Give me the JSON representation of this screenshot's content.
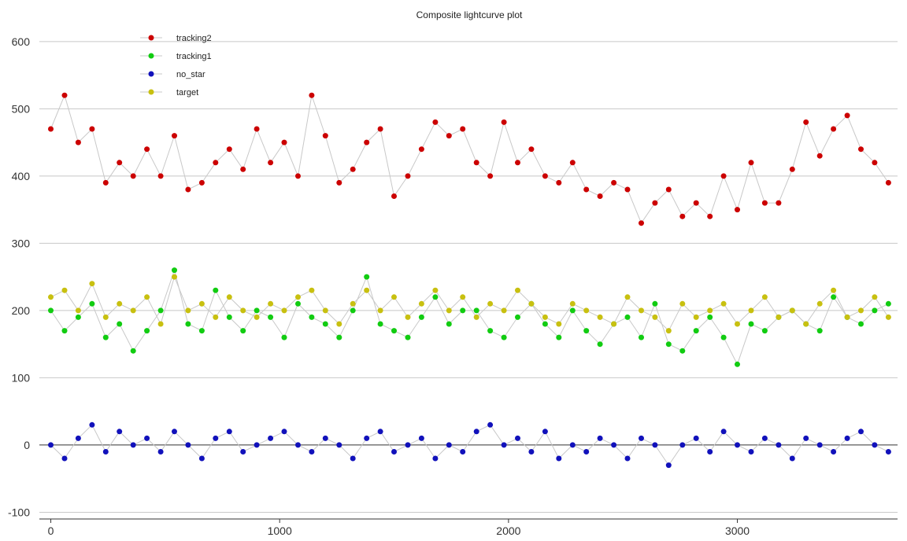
{
  "chart_data": {
    "type": "scatter",
    "title": "Composite lightcurve plot",
    "xlabel": "",
    "ylabel": "",
    "xlim": [
      -50,
      3700
    ],
    "ylim": [
      -110,
      615
    ],
    "xticks": [
      0,
      1000,
      2000,
      3000
    ],
    "yticks": [
      -100,
      0,
      100,
      200,
      300,
      400,
      500,
      600
    ],
    "grid": "horizontal",
    "legend_position": "top-left",
    "connect_points": true,
    "line_color": "#c8c8c8",
    "series": [
      {
        "name": "tracking2",
        "color": "#cc0000",
        "x": [
          0,
          60,
          120,
          180,
          240,
          300,
          360,
          420,
          480,
          540,
          600,
          660,
          720,
          780,
          840,
          900,
          960,
          1020,
          1080,
          1140,
          1200,
          1260,
          1320,
          1380,
          1440,
          1500,
          1560,
          1620,
          1680,
          1740,
          1800,
          1860,
          1920,
          1980,
          2040,
          2100,
          2160,
          2220,
          2280,
          2340,
          2400,
          2460,
          2520,
          2580,
          2640,
          2700,
          2760,
          2820,
          2880,
          2940,
          3000,
          3060,
          3120,
          3180,
          3240,
          3300,
          3360,
          3420,
          3480,
          3540,
          3600,
          3660
        ],
        "y": [
          470,
          520,
          450,
          470,
          390,
          420,
          400,
          440,
          400,
          460,
          380,
          390,
          420,
          440,
          410,
          470,
          420,
          450,
          400,
          520,
          460,
          390,
          410,
          450,
          470,
          370,
          400,
          440,
          480,
          460,
          470,
          420,
          400,
          480,
          420,
          440,
          400,
          390,
          420,
          380,
          370,
          390,
          380,
          330,
          360,
          380,
          340,
          360,
          340,
          400,
          350,
          420,
          360,
          360,
          410,
          480,
          430,
          470,
          490,
          440,
          420,
          390
        ]
      },
      {
        "name": "tracking1",
        "color": "#11cc11",
        "x": [
          0,
          60,
          120,
          180,
          240,
          300,
          360,
          420,
          480,
          540,
          600,
          660,
          720,
          780,
          840,
          900,
          960,
          1020,
          1080,
          1140,
          1200,
          1260,
          1320,
          1380,
          1440,
          1500,
          1560,
          1620,
          1680,
          1740,
          1800,
          1860,
          1920,
          1980,
          2040,
          2100,
          2160,
          2220,
          2280,
          2340,
          2400,
          2460,
          2520,
          2580,
          2640,
          2700,
          2760,
          2820,
          2880,
          2940,
          3000,
          3060,
          3120,
          3180,
          3240,
          3300,
          3360,
          3420,
          3480,
          3540,
          3600,
          3660
        ],
        "y": [
          200,
          170,
          190,
          210,
          160,
          180,
          140,
          170,
          200,
          260,
          180,
          170,
          230,
          190,
          170,
          200,
          190,
          160,
          210,
          190,
          180,
          160,
          200,
          250,
          180,
          170,
          160,
          190,
          220,
          180,
          200,
          200,
          170,
          160,
          190,
          210,
          180,
          160,
          200,
          170,
          150,
          180,
          190,
          160,
          210,
          150,
          140,
          170,
          190,
          160,
          120,
          180,
          170,
          190,
          200,
          180,
          170,
          220,
          190,
          180,
          200,
          210
        ]
      },
      {
        "name": "no_star",
        "color": "#1111bb",
        "x": [
          0,
          60,
          120,
          180,
          240,
          300,
          360,
          420,
          480,
          540,
          600,
          660,
          720,
          780,
          840,
          900,
          960,
          1020,
          1080,
          1140,
          1200,
          1260,
          1320,
          1380,
          1440,
          1500,
          1560,
          1620,
          1680,
          1740,
          1800,
          1860,
          1920,
          1980,
          2040,
          2100,
          2160,
          2220,
          2280,
          2340,
          2400,
          2460,
          2520,
          2580,
          2640,
          2700,
          2760,
          2820,
          2880,
          2940,
          3000,
          3060,
          3120,
          3180,
          3240,
          3300,
          3360,
          3420,
          3480,
          3540,
          3600,
          3660
        ],
        "y": [
          0,
          -20,
          10,
          30,
          -10,
          20,
          0,
          10,
          -10,
          20,
          0,
          -20,
          10,
          20,
          -10,
          0,
          10,
          20,
          0,
          -10,
          10,
          0,
          -20,
          10,
          20,
          -10,
          0,
          10,
          -20,
          0,
          -10,
          20,
          30,
          0,
          10,
          -10,
          20,
          -20,
          0,
          -10,
          10,
          0,
          -20,
          10,
          0,
          -30,
          0,
          10,
          -10,
          20,
          0,
          -10,
          10,
          0,
          -20,
          10,
          0,
          -10,
          10,
          20,
          0,
          -10
        ]
      },
      {
        "name": "target",
        "color": "#c8c010",
        "x": [
          0,
          60,
          120,
          180,
          240,
          300,
          360,
          420,
          480,
          540,
          600,
          660,
          720,
          780,
          840,
          900,
          960,
          1020,
          1080,
          1140,
          1200,
          1260,
          1320,
          1380,
          1440,
          1500,
          1560,
          1620,
          1680,
          1740,
          1800,
          1860,
          1920,
          1980,
          2040,
          2100,
          2160,
          2220,
          2280,
          2340,
          2400,
          2460,
          2520,
          2580,
          2640,
          2700,
          2760,
          2820,
          2880,
          2940,
          3000,
          3060,
          3120,
          3180,
          3240,
          3300,
          3360,
          3420,
          3480,
          3540,
          3600,
          3660
        ],
        "y": [
          220,
          230,
          200,
          240,
          190,
          210,
          200,
          220,
          180,
          250,
          200,
          210,
          190,
          220,
          200,
          190,
          210,
          200,
          220,
          230,
          200,
          180,
          210,
          230,
          200,
          220,
          190,
          210,
          230,
          200,
          220,
          190,
          210,
          200,
          230,
          210,
          190,
          180,
          210,
          200,
          190,
          180,
          220,
          200,
          190,
          170,
          210,
          190,
          200,
          210,
          180,
          200,
          220,
          190,
          200,
          180,
          210,
          230,
          190,
          200,
          220,
          190
        ]
      }
    ]
  }
}
